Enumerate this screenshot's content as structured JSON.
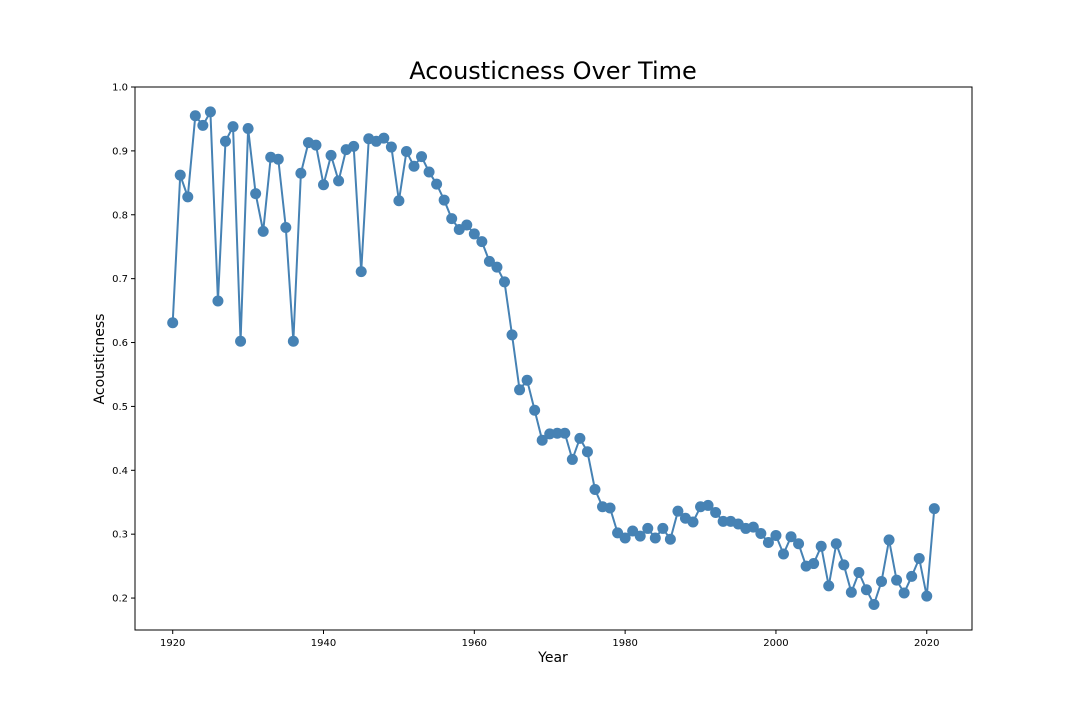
{
  "chart_data": {
    "type": "line",
    "title": "Acousticness Over Time",
    "xlabel": "Year",
    "ylabel": "Acousticness",
    "xlim": [
      1915,
      2026
    ],
    "ylim": [
      0.15,
      1.0
    ],
    "xticks": [
      1920,
      1940,
      1960,
      1980,
      2000,
      2020
    ],
    "yticks": [
      0.2,
      0.3,
      0.4,
      0.5,
      0.6,
      0.7,
      0.8,
      0.9,
      1.0
    ],
    "grid": false,
    "line_color": "#4682b4",
    "marker": "circle",
    "series": [
      {
        "x": [
          1920,
          1921,
          1922,
          1923,
          1924,
          1925,
          1926,
          1927,
          1928,
          1929,
          1930,
          1931,
          1932,
          1933,
          1934,
          1935,
          1936,
          1937,
          1938,
          1939,
          1940,
          1941,
          1942,
          1943,
          1944,
          1945,
          1946,
          1947,
          1948,
          1949,
          1950,
          1951,
          1952,
          1953,
          1954,
          1955,
          1956,
          1957,
          1958,
          1959,
          1960,
          1961,
          1962,
          1963,
          1964,
          1965,
          1966,
          1967,
          1968,
          1969,
          1970,
          1971,
          1972,
          1973,
          1974,
          1975,
          1976,
          1977,
          1978,
          1979,
          1980,
          1981,
          1982,
          1983,
          1984,
          1985,
          1986,
          1987,
          1988,
          1989,
          1990,
          1991,
          1992,
          1993,
          1994,
          1995,
          1996,
          1997,
          1998,
          1999,
          2000,
          2001,
          2002,
          2003,
          2004,
          2005,
          2006,
          2007,
          2008,
          2009,
          2010,
          2011,
          2012,
          2013,
          2014,
          2015,
          2016,
          2017,
          2018,
          2019,
          2020,
          2021
        ],
        "y": [
          0.631,
          0.862,
          0.828,
          0.955,
          0.94,
          0.961,
          0.665,
          0.915,
          0.938,
          0.602,
          0.935,
          0.833,
          0.774,
          0.89,
          0.887,
          0.78,
          0.602,
          0.865,
          0.913,
          0.909,
          0.847,
          0.893,
          0.853,
          0.902,
          0.907,
          0.711,
          0.919,
          0.915,
          0.92,
          0.906,
          0.822,
          0.899,
          0.876,
          0.891,
          0.867,
          0.848,
          0.823,
          0.794,
          0.777,
          0.784,
          0.77,
          0.758,
          0.727,
          0.718,
          0.695,
          0.612,
          0.526,
          0.541,
          0.494,
          0.447,
          0.457,
          0.458,
          0.458,
          0.417,
          0.45,
          0.429,
          0.37,
          0.343,
          0.341,
          0.302,
          0.294,
          0.305,
          0.297,
          0.309,
          0.294,
          0.309,
          0.292,
          0.336,
          0.325,
          0.319,
          0.343,
          0.345,
          0.334,
          0.32,
          0.32,
          0.316,
          0.309,
          0.311,
          0.301,
          0.287,
          0.298,
          0.269,
          0.296,
          0.285,
          0.25,
          0.254,
          0.281,
          0.219,
          0.285,
          0.252,
          0.209,
          0.24,
          0.213,
          0.19,
          0.226,
          0.291,
          0.228,
          0.208,
          0.234,
          0.262,
          0.203,
          0.34
        ]
      }
    ]
  }
}
